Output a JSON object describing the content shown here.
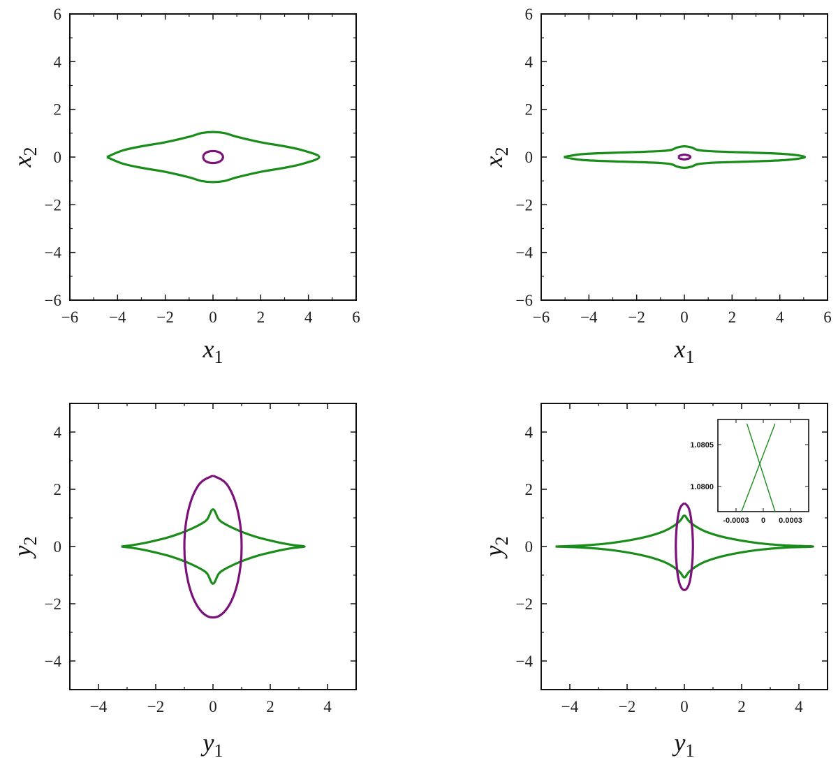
{
  "chart_data": [
    {
      "type": "line",
      "panel": "top-left",
      "xlabel": "x",
      "xlabel_sub": "1",
      "ylabel": "x",
      "ylabel_sub": "2",
      "xlim": [
        -6,
        6
      ],
      "ylim": [
        -6,
        6
      ],
      "xticks": [
        -6,
        -4,
        -2,
        0,
        2,
        4,
        6
      ],
      "yticks": [
        -6,
        -4,
        -2,
        0,
        2,
        4,
        6
      ],
      "grid": false,
      "series": [
        {
          "color": "#1a8c1a",
          "x": [
            -4.45,
            -3.8,
            -3.0,
            -2.0,
            -1.0,
            -0.5,
            0.0,
            0.5,
            1.0,
            2.0,
            3.0,
            3.8,
            4.45,
            3.8,
            3.0,
            2.0,
            1.0,
            0.5,
            0.0,
            -0.5,
            -1.0,
            -2.0,
            -3.0,
            -3.8,
            -4.45
          ],
          "y": [
            0.0,
            0.27,
            0.45,
            0.62,
            0.85,
            1.0,
            1.05,
            1.0,
            0.85,
            0.62,
            0.45,
            0.27,
            0.0,
            -0.27,
            -0.45,
            -0.62,
            -0.85,
            -1.0,
            -1.05,
            -1.0,
            -0.85,
            -0.62,
            -0.45,
            -0.27,
            0.0
          ]
        },
        {
          "color": "#7a127a",
          "x": [
            -0.42,
            -0.36,
            -0.21,
            0.0,
            0.21,
            0.36,
            0.42,
            0.36,
            0.21,
            0.0,
            -0.21,
            -0.36,
            -0.42
          ],
          "y": [
            0.0,
            0.13,
            0.22,
            0.25,
            0.22,
            0.13,
            0.0,
            -0.13,
            -0.22,
            -0.25,
            -0.22,
            -0.13,
            0.0
          ]
        }
      ]
    },
    {
      "type": "line",
      "panel": "top-right",
      "xlabel": "x",
      "xlabel_sub": "1",
      "ylabel": "x",
      "ylabel_sub": "2",
      "xlim": [
        -6,
        6
      ],
      "ylim": [
        -6,
        6
      ],
      "xticks": [
        -6,
        -4,
        -2,
        0,
        2,
        4,
        6
      ],
      "yticks": [
        -6,
        -4,
        -2,
        0,
        2,
        4,
        6
      ],
      "grid": false,
      "series": [
        {
          "color": "#1a8c1a",
          "x": [
            -5.05,
            -4.3,
            -3.0,
            -2.0,
            -1.0,
            -0.55,
            -0.3,
            0.0,
            0.3,
            0.55,
            1.0,
            2.0,
            3.0,
            4.3,
            5.05,
            4.3,
            3.0,
            2.0,
            1.0,
            0.55,
            0.3,
            0.0,
            -0.3,
            -0.55,
            -1.0,
            -2.0,
            -3.0,
            -4.3,
            -5.05
          ],
          "y": [
            0.0,
            0.12,
            0.18,
            0.21,
            0.25,
            0.3,
            0.4,
            0.45,
            0.4,
            0.3,
            0.25,
            0.21,
            0.18,
            0.12,
            0.0,
            -0.12,
            -0.18,
            -0.21,
            -0.25,
            -0.3,
            -0.4,
            -0.45,
            -0.4,
            -0.3,
            -0.25,
            -0.21,
            -0.18,
            -0.12,
            0.0
          ]
        },
        {
          "color": "#7a127a",
          "x": [
            -0.25,
            -0.21,
            -0.12,
            0.0,
            0.12,
            0.21,
            0.25,
            0.21,
            0.12,
            0.0,
            -0.12,
            -0.21,
            -0.25
          ],
          "y": [
            0.0,
            0.05,
            0.08,
            0.1,
            0.08,
            0.05,
            0.0,
            -0.05,
            -0.08,
            -0.1,
            -0.08,
            -0.05,
            0.0
          ]
        }
      ]
    },
    {
      "type": "line",
      "panel": "bottom-left",
      "xlabel": "y",
      "xlabel_sub": "1",
      "ylabel": "y",
      "ylabel_sub": "2",
      "xlim": [
        -5,
        5
      ],
      "ylim": [
        -5,
        5
      ],
      "xticks": [
        -4,
        -2,
        0,
        2,
        4
      ],
      "yticks": [
        -4,
        -2,
        0,
        2,
        4
      ],
      "grid": false,
      "series": [
        {
          "color": "#1a8c1a",
          "x": [
            -3.2,
            -2.8,
            -2.4,
            -2.0,
            -1.6,
            -1.2,
            -0.8,
            -0.4,
            -0.2,
            0.0,
            0.2,
            0.4,
            0.8,
            1.2,
            1.6,
            2.0,
            2.4,
            2.8,
            3.2,
            2.8,
            2.4,
            2.0,
            1.6,
            1.2,
            0.8,
            0.4,
            0.2,
            0.0,
            -0.2,
            -0.4,
            -0.8,
            -1.2,
            -1.6,
            -2.0,
            -2.4,
            -2.8,
            -3.2
          ],
          "y": [
            0.0,
            0.05,
            0.12,
            0.21,
            0.31,
            0.44,
            0.6,
            0.8,
            0.95,
            1.3,
            0.95,
            0.8,
            0.6,
            0.44,
            0.31,
            0.21,
            0.12,
            0.05,
            0.0,
            -0.05,
            -0.12,
            -0.21,
            -0.31,
            -0.44,
            -0.6,
            -0.8,
            -0.95,
            -1.3,
            -0.95,
            -0.8,
            -0.6,
            -0.44,
            -0.31,
            -0.21,
            -0.12,
            -0.05,
            0.0
          ]
        },
        {
          "color": "#7a127a",
          "x": [
            0.0,
            0.5,
            0.866,
            1.0,
            0.866,
            0.5,
            0.0,
            -0.5,
            -0.866,
            -1.0,
            -0.866,
            -0.5,
            0.0
          ],
          "y": [
            2.48,
            2.15,
            1.24,
            0.0,
            -1.24,
            -2.15,
            -2.48,
            -2.15,
            -1.24,
            0.0,
            1.24,
            2.15,
            2.48
          ]
        }
      ]
    },
    {
      "type": "line",
      "panel": "bottom-right",
      "xlabel": "y",
      "xlabel_sub": "1",
      "ylabel": "y",
      "ylabel_sub": "2",
      "xlim": [
        -5,
        5
      ],
      "ylim": [
        -5,
        5
      ],
      "xticks": [
        -4,
        -2,
        0,
        2,
        4
      ],
      "yticks": [
        -4,
        -2,
        0,
        2,
        4
      ],
      "grid": false,
      "series": [
        {
          "color": "#1a8c1a",
          "x": [
            -4.5,
            -3.5,
            -2.5,
            -1.5,
            -0.8,
            -0.4,
            -0.15,
            0.0,
            0.15,
            0.4,
            0.8,
            1.5,
            2.5,
            3.5,
            4.5,
            3.5,
            2.5,
            1.5,
            0.8,
            0.4,
            0.15,
            0.0,
            -0.15,
            -0.4,
            -0.8,
            -1.5,
            -2.5,
            -3.5,
            -4.5
          ],
          "y": [
            0.0,
            0.04,
            0.13,
            0.3,
            0.5,
            0.7,
            0.9,
            1.08,
            0.9,
            0.7,
            0.5,
            0.3,
            0.13,
            0.04,
            0.0,
            -0.04,
            -0.13,
            -0.3,
            -0.5,
            -0.7,
            -0.9,
            -1.08,
            -0.9,
            -0.7,
            -0.5,
            -0.3,
            -0.13,
            -0.04,
            0.0
          ]
        },
        {
          "color": "#7a127a",
          "x": [
            0.0,
            0.16,
            0.26,
            0.3,
            0.26,
            0.16,
            0.0,
            -0.16,
            -0.26,
            -0.3,
            -0.26,
            -0.16,
            0.0
          ],
          "y": [
            1.52,
            1.32,
            0.76,
            0.0,
            -0.76,
            -1.32,
            -1.52,
            -1.32,
            -0.76,
            0.0,
            0.76,
            1.32,
            1.52
          ]
        }
      ],
      "inset": {
        "placement": "top-right",
        "xlim": [
          -0.0005,
          0.0005
        ],
        "ylim": [
          1.0797,
          1.0808
        ],
        "xticks": [
          -0.0003,
          0,
          0.0003
        ],
        "xtick_labels": [
          "-0.0003",
          "0",
          "0.0003"
        ],
        "yticks": [
          1.08,
          1.0805
        ],
        "ytick_labels": [
          "1.0800",
          "1.0805"
        ],
        "series": [
          {
            "color": "#1a8c1a",
            "x": [
              -0.00024,
              0.00013
            ],
            "y": [
              1.0797,
              1.08075
            ]
          },
          {
            "color": "#1a8c1a",
            "x": [
              0.00013,
              -0.00018
            ],
            "y": [
              1.0797,
              1.08075
            ]
          }
        ]
      }
    }
  ]
}
